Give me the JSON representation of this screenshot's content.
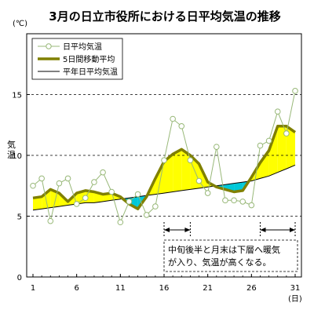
{
  "chart_data": {
    "type": "line",
    "title": "3月の日立市役所における日平均気温の推移",
    "y_unit": "(℃)",
    "ylabel": "気温",
    "x_unit": "(日)",
    "xlim": [
      1,
      31
    ],
    "ylim": [
      0,
      20
    ],
    "x_ticks": [
      "1",
      "6",
      "11",
      "16",
      "21",
      "26",
      "31"
    ],
    "y_ticks": [
      "0",
      "5",
      "10",
      "15"
    ],
    "grid": "dashed horizontal at 5, 10, 15",
    "legend_position": "top-left",
    "x": [
      1,
      2,
      3,
      4,
      5,
      6,
      7,
      8,
      9,
      10,
      11,
      12,
      13,
      14,
      15,
      16,
      17,
      18,
      19,
      20,
      21,
      22,
      23,
      24,
      25,
      26,
      27,
      28,
      29,
      30,
      31
    ],
    "series": [
      {
        "name": "日平均気温",
        "style": "thin line with open circle markers",
        "values": [
          7.5,
          8.1,
          4.6,
          7.7,
          8.1,
          6.0,
          6.5,
          7.8,
          8.6,
          7.0,
          4.5,
          6.2,
          6.8,
          5.1,
          5.8,
          9.6,
          13.0,
          12.4,
          9.6,
          7.9,
          6.9,
          10.7,
          6.3,
          6.3,
          6.2,
          5.9,
          10.8,
          11.2,
          13.6,
          11.8,
          15.3
        ],
        "color": "#98b878"
      },
      {
        "name": "5日間移動平均",
        "style": "thick line",
        "values": [
          6.5,
          6.6,
          7.2,
          6.9,
          6.2,
          6.9,
          7.1,
          7.0,
          6.8,
          6.9,
          6.6,
          6.0,
          5.6,
          6.6,
          8.1,
          9.5,
          10.1,
          10.5,
          10.0,
          9.3,
          7.8,
          7.4,
          7.2,
          7.0,
          7.1,
          8.2,
          9.4,
          10.4,
          12.4,
          12.4,
          11.9
        ],
        "color": "#808000"
      },
      {
        "name": "平年日平均気温",
        "style": "thin black line",
        "values": [
          5.5,
          5.6,
          5.7,
          5.8,
          5.9,
          6.0,
          6.1,
          6.1,
          6.2,
          6.3,
          6.4,
          6.5,
          6.6,
          6.7,
          6.8,
          6.9,
          7.0,
          7.1,
          7.2,
          7.3,
          7.4,
          7.5,
          7.6,
          7.7,
          7.8,
          7.9,
          8.1,
          8.3,
          8.6,
          8.9,
          9.2
        ],
        "color": "#000000"
      }
    ],
    "fill_between": {
      "above_normal_color": "#ffff00",
      "below_normal_color": "#00c8d8"
    },
    "annotation": {
      "text_line1": "中旬後半と月末は下層へ暖気",
      "text_line2": "が入り、気温が高くなる。",
      "highlighted_periods": [
        [
          16,
          19
        ],
        [
          27,
          31
        ]
      ]
    }
  }
}
